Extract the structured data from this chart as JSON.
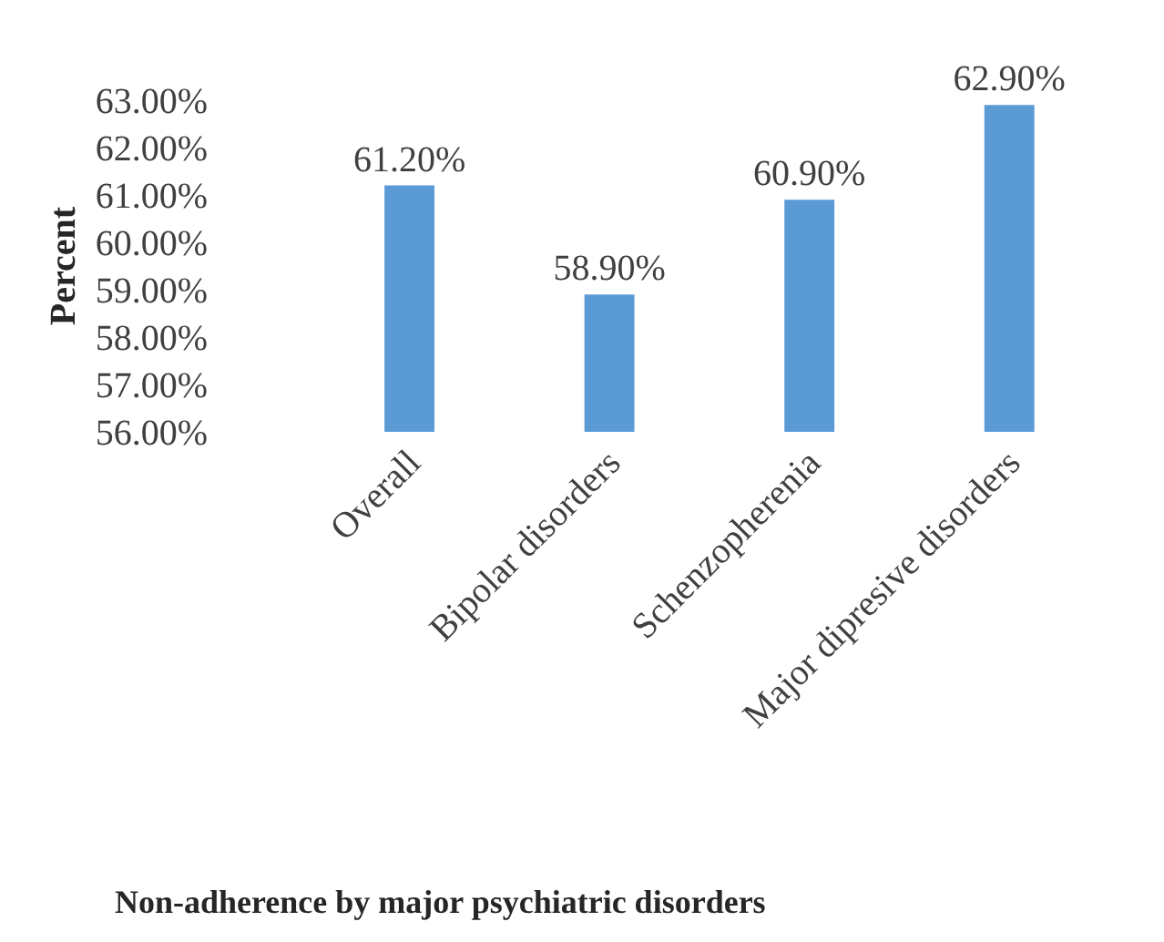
{
  "chart_data": {
    "type": "bar",
    "title": "Non-adherence by major psychiatric disorders",
    "ylabel": "Percent",
    "categories": [
      "Overall",
      "Bipolar disorders",
      "Schenzopherenia",
      "Major dipresive disorders"
    ],
    "values": [
      61.2,
      58.9,
      60.9,
      62.9
    ],
    "color": "#5b9bd5",
    "value_labels": [
      "61.20%",
      "58.90%",
      "60.90%",
      "62.90%"
    ],
    "ylim": [
      56,
      63
    ],
    "yticks": [
      {
        "value": 56,
        "label": "56.00%"
      },
      {
        "value": 57,
        "label": "57.00%"
      },
      {
        "value": 58,
        "label": "58.00%"
      },
      {
        "value": 59,
        "label": "59.00%"
      },
      {
        "value": 60,
        "label": "60.00%"
      },
      {
        "value": 61,
        "label": "61.00%"
      },
      {
        "value": 62,
        "label": "62.00%"
      },
      {
        "value": 63,
        "label": "63.00%"
      }
    ],
    "grid": false,
    "legend": false
  }
}
